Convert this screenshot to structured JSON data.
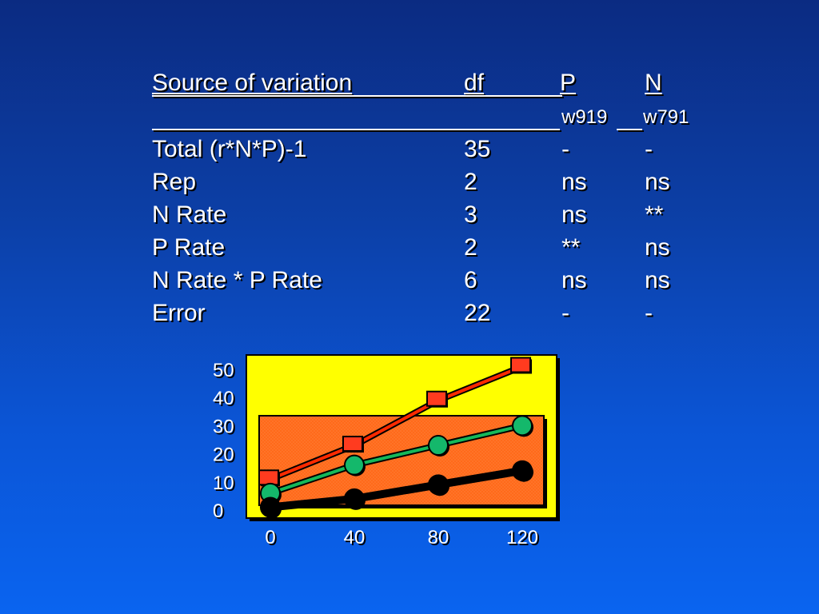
{
  "table": {
    "headers": {
      "source": "Source of variation",
      "df": "df",
      "p": "P",
      "n": "N"
    },
    "subheaders": {
      "p": "w919",
      "n": "w791"
    },
    "rows": [
      {
        "source": "Total (r*N*P)-1",
        "df": "35",
        "p": "-",
        "n": "-"
      },
      {
        "source": "Rep",
        "df": "2",
        "p": "ns",
        "n": "ns"
      },
      {
        "source": "N Rate",
        "df": "3",
        "p": "ns",
        "n": "**"
      },
      {
        "source": "P Rate",
        "df": "2",
        "p": "**",
        "n": "ns"
      },
      {
        "source": "N Rate * P Rate",
        "df": "6",
        "p": "ns",
        "n": "ns"
      },
      {
        "source": "Error",
        "df": "22",
        "p": "-",
        "n": "-"
      }
    ]
  },
  "chart_data": {
    "type": "line",
    "x": [
      0,
      40,
      80,
      120
    ],
    "x_tick_labels": [
      "0",
      "40",
      "80",
      "120"
    ],
    "y_tick_labels": [
      "0",
      "10",
      "20",
      "30",
      "40",
      "50"
    ],
    "xlim": [
      0,
      120
    ],
    "ylim": [
      0,
      50
    ],
    "series": [
      {
        "values": [
          11,
          23,
          39,
          51
        ],
        "line_color": "#ff2a00",
        "marker_fill": "#ff3b1f",
        "marker": "square"
      },
      {
        "values": [
          6,
          16,
          23,
          30
        ],
        "line_color": "#15b85a",
        "marker_fill": "#14b86b",
        "marker": "circle"
      },
      {
        "values": [
          1,
          4,
          9,
          14
        ],
        "line_color": "#000000",
        "marker_fill": "#000000",
        "marker": "circle"
      }
    ],
    "grid": false,
    "plot_background": "#ffff00",
    "inner_panel_color": "#ff6a1a"
  }
}
